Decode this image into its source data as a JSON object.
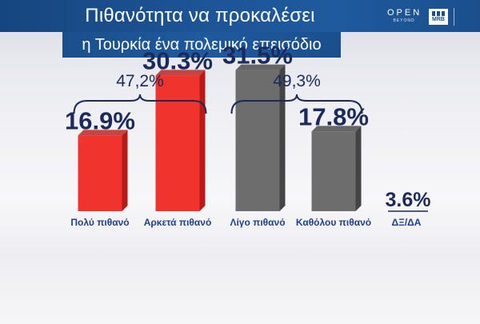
{
  "header": {
    "title_line1": "Πιθανότητα να προκαλέσει",
    "title_line2": "η Τουρκία ένα πολεμικό επεισόδιο",
    "logo_open": "OPEN",
    "logo_open_sub": "BEYOND",
    "logo_mrb": "MRB"
  },
  "colors": {
    "red": "#f0342d",
    "red_dark": "#b81a18",
    "gray": "#6d6d6d",
    "gray_dark": "#444444",
    "text_dark": "#1a2a5c",
    "label_blue": "#1f3f8f"
  },
  "chart_data": {
    "type": "bar",
    "title": "Πιθανότητα να προκαλέσει η Τουρκία ένα πολεμικό επεισόδιο",
    "categories": [
      "Πολύ πιθανό",
      "Αρκετά πιθανό",
      "Λίγο πιθανό",
      "Καθόλου πιθανό",
      "ΔΞ/ΔΑ"
    ],
    "values": [
      16.9,
      30.3,
      31.5,
      17.8,
      3.6
    ],
    "value_labels": [
      "16.9%",
      "30.3%",
      "31.5%",
      "17.8%",
      "3.6%"
    ],
    "bar_colors": [
      "red",
      "red",
      "gray",
      "gray",
      "none"
    ],
    "groups": [
      {
        "label": "47,2%",
        "members": [
          0,
          1
        ]
      },
      {
        "label": "49,3%",
        "members": [
          2,
          3
        ]
      }
    ],
    "ylim": [
      0,
      35
    ],
    "grid": false,
    "legend": "none"
  }
}
